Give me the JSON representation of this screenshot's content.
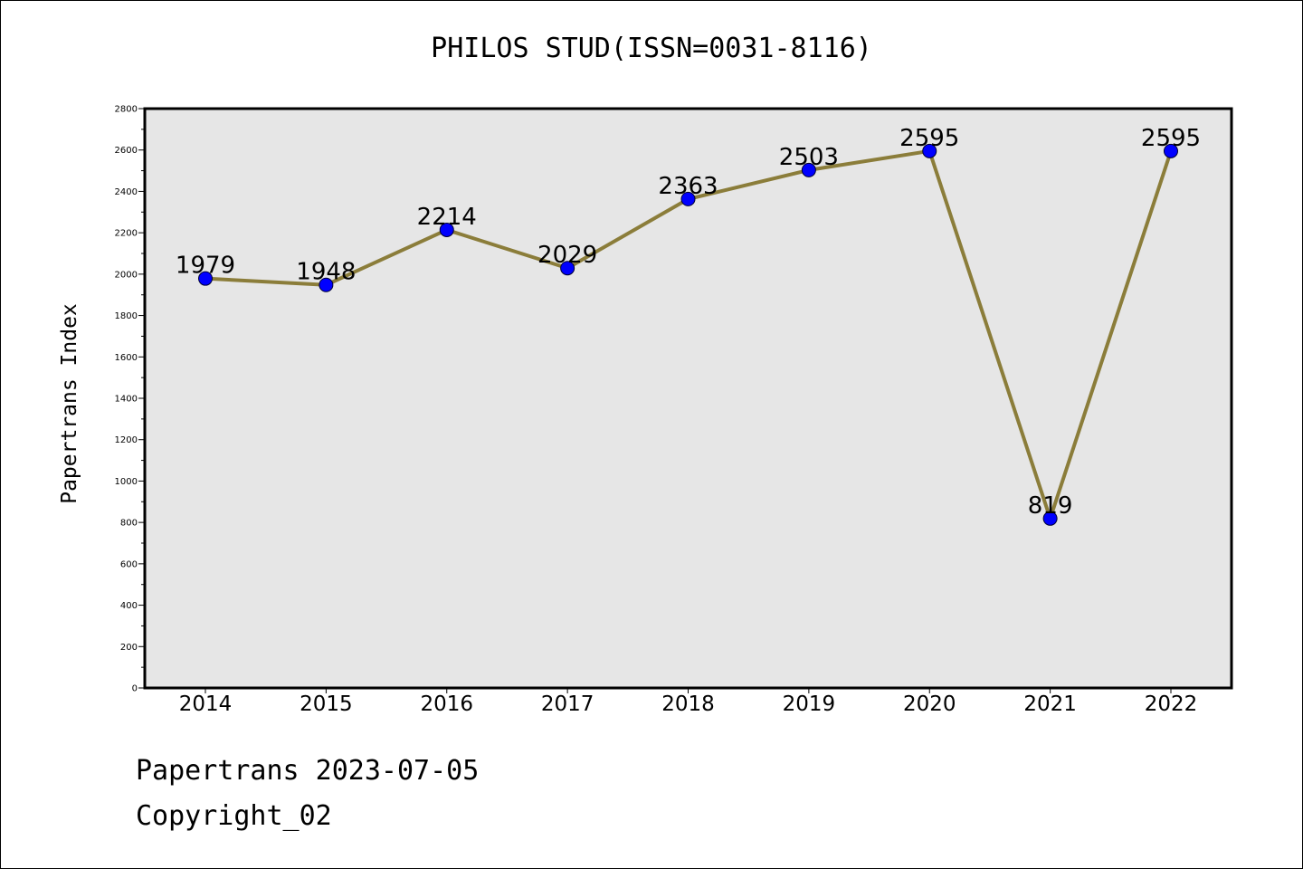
{
  "chart_data": {
    "type": "line",
    "title": "PHILOS STUD(ISSN=0031-8116)",
    "ylabel": "Papertrans Index",
    "xlabel": "",
    "categories": [
      "2014",
      "2015",
      "2016",
      "2017",
      "2018",
      "2019",
      "2020",
      "2021",
      "2022"
    ],
    "values": [
      1979,
      1948,
      2214,
      2029,
      2363,
      2503,
      2595,
      819,
      2595
    ],
    "data_labels": [
      "1979",
      "1948",
      "2214",
      "2029",
      "2363",
      "2503",
      "2595",
      "819",
      "2595"
    ],
    "ylim": [
      0,
      2800
    ],
    "yticks": [
      0,
      200,
      400,
      600,
      800,
      1000,
      1200,
      1400,
      1600,
      1800,
      2000,
      2200,
      2400,
      2600,
      2800
    ],
    "grid": false,
    "colors": {
      "line": "#8B7D3A",
      "marker": "#0000FF",
      "plot_background": "#E6E6E6"
    }
  },
  "footer": {
    "line1": "Papertrans 2023-07-05",
    "line2": "Copyright_02"
  }
}
